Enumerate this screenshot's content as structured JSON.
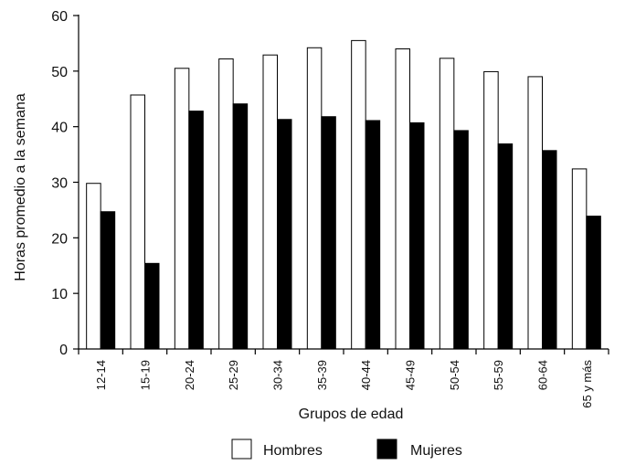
{
  "chart_data": {
    "type": "bar",
    "categories": [
      "12-14",
      "15-19",
      "20-24",
      "25-29",
      "30-34",
      "35-39",
      "40-44",
      "45-49",
      "50-54",
      "55-59",
      "60-64",
      "65 y más"
    ],
    "series": [
      {
        "name": "Hombres",
        "values": [
          29.8,
          45.7,
          50.5,
          52.2,
          52.9,
          54.2,
          55.5,
          54.0,
          52.3,
          49.9,
          49.0,
          32.4
        ],
        "color": "#ffffff"
      },
      {
        "name": "Mujeres",
        "values": [
          24.7,
          15.4,
          42.8,
          44.1,
          41.3,
          41.8,
          41.1,
          40.7,
          39.3,
          36.9,
          35.7,
          23.9
        ],
        "color": "#000000"
      }
    ],
    "title": "",
    "xlabel": "Grupos de edad",
    "ylabel": "Horas promedio a la semana",
    "ylim": [
      0,
      60
    ],
    "yticks": [
      0,
      10,
      20,
      30,
      40,
      50,
      60
    ],
    "grid": false,
    "legend": "bottom-center"
  }
}
